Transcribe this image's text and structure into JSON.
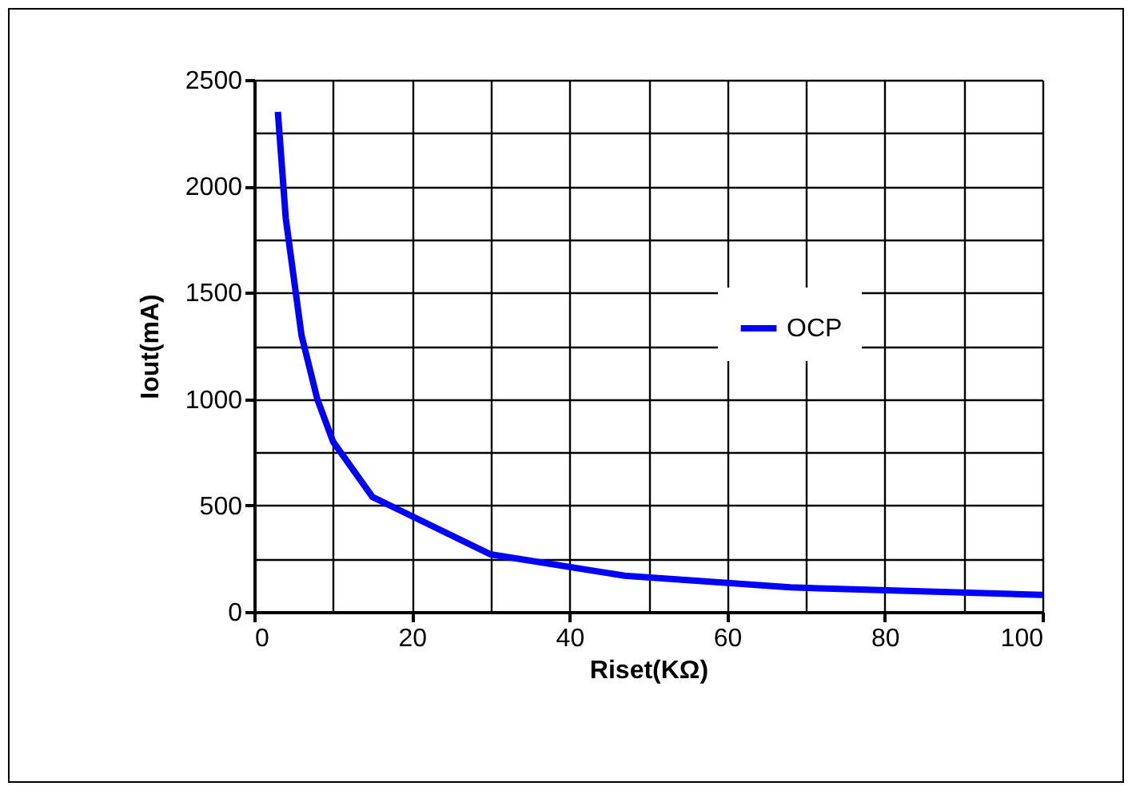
{
  "chart_data": {
    "type": "line",
    "xlabel": "Riset(KΩ)",
    "ylabel": "Iout(mA)",
    "x": [
      3,
      4,
      6,
      8,
      10,
      15,
      30,
      47,
      68,
      100
    ],
    "series": [
      {
        "name": "OCP",
        "color": "#0000ff",
        "values": [
          2350,
          1850,
          1300,
          1000,
          800,
          540,
          270,
          170,
          115,
          80
        ]
      }
    ],
    "xlim": [
      0,
      100
    ],
    "xticks": [
      0,
      {
        "value": 10,
        "label": null
      },
      20,
      {
        "value": 30,
        "label": null
      },
      40,
      {
        "value": 50,
        "label": null
      },
      60,
      {
        "value": 70,
        "label": null
      },
      80,
      {
        "value": 90,
        "label": null
      },
      100
    ],
    "ylim": [
      0,
      2500
    ],
    "yticks": [
      0,
      {
        "value": 250,
        "label": null
      },
      500,
      {
        "value": 750,
        "label": null
      },
      1000,
      {
        "value": 1250,
        "label": null
      },
      1500,
      {
        "value": 1750,
        "label": null
      },
      2000,
      {
        "value": 2250,
        "label": null
      },
      2500
    ],
    "grid": true,
    "legend": "right",
    "marker": "none",
    "line_style": "solid"
  }
}
